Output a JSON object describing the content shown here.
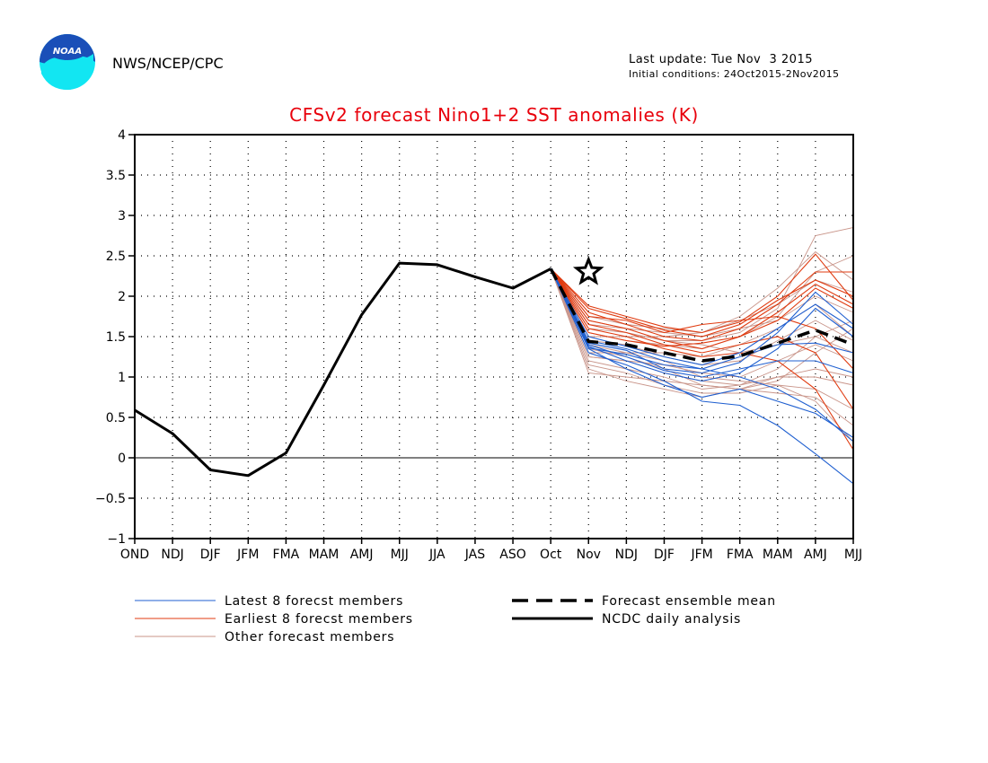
{
  "header": {
    "org": "NWS/NCEP/CPC",
    "logo_text": "NOAA",
    "last_update": "Last update: Tue Nov  3 2015",
    "initial_conditions": "Initial conditions: 24Oct2015-2Nov2015"
  },
  "colors": {
    "title": "#e8000b",
    "latest": "#1f5fd0",
    "earliest": "#e03b10",
    "other": "#c9958a",
    "analysis": "#000000",
    "logo_blue": "#1a4fb8",
    "logo_cyan": "#12e6f2"
  },
  "chart_data": {
    "type": "line",
    "title": "CFSv2 forecast Nino1+2 SST anomalies (K)",
    "xlabel": "",
    "ylabel": "",
    "categories": [
      "OND",
      "NDJ",
      "DJF",
      "JFM",
      "FMA",
      "MAM",
      "AMJ",
      "MJJ",
      "JJA",
      "JAS",
      "ASO",
      "Oct",
      "Nov",
      "NDJ",
      "DJF",
      "JFM",
      "FMA",
      "MAM",
      "AMJ",
      "MJJ"
    ],
    "ylim": [
      -1,
      4
    ],
    "yticks": [
      "4",
      "3.5",
      "3",
      "2.5",
      "2",
      "1.5",
      "1",
      "0.5",
      "0",
      "−0.5",
      "−1"
    ],
    "grid": true,
    "zero_line": true,
    "legend_position": "bottom",
    "legend": {
      "latest": "Latest 8 forecst members",
      "earliest": "Earliest 8 forecst members",
      "other": "Other forecast members",
      "mean": "Forecast ensemble mean",
      "analysis": "NCDC daily analysis"
    },
    "analysis": {
      "name": "NCDC daily analysis",
      "x": [
        0,
        1,
        2,
        3,
        4,
        5,
        6,
        7,
        8,
        9,
        10,
        11
      ],
      "values": [
        0.59,
        0.3,
        -0.15,
        -0.22,
        0.06,
        0.9,
        1.77,
        2.41,
        2.39,
        2.24,
        2.1,
        2.34
      ]
    },
    "star": {
      "x": 12,
      "value": 2.3
    },
    "forecast_ensemble_mean": {
      "name": "Forecast ensemble mean",
      "x": [
        11,
        12,
        13,
        14,
        15,
        16,
        17,
        18,
        19
      ],
      "values": [
        2.34,
        1.44,
        1.4,
        1.3,
        1.2,
        1.26,
        1.42,
        1.58,
        1.4
      ]
    },
    "forecast_x": [
      11,
      12,
      13,
      14,
      15,
      16,
      17,
      18,
      19
    ],
    "latest_members": [
      [
        2.34,
        1.42,
        1.33,
        1.1,
        1.05,
        1.18,
        1.55,
        2.05,
        1.65
      ],
      [
        2.34,
        1.38,
        1.2,
        1.05,
        0.95,
        1.05,
        1.35,
        1.85,
        1.5
      ],
      [
        2.34,
        1.3,
        1.15,
        0.95,
        0.7,
        0.65,
        0.4,
        0.05,
        -0.32
      ],
      [
        2.34,
        1.35,
        1.1,
        0.9,
        0.75,
        0.85,
        0.7,
        0.55,
        0.25
      ],
      [
        2.34,
        1.45,
        1.35,
        1.2,
        1.1,
        1.25,
        1.4,
        1.42,
        1.3
      ],
      [
        2.34,
        1.5,
        1.38,
        1.25,
        1.15,
        1.3,
        1.6,
        1.9,
        1.6
      ],
      [
        2.34,
        1.4,
        1.25,
        1.08,
        1.0,
        1.1,
        1.2,
        1.2,
        1.05
      ],
      [
        2.34,
        1.36,
        1.28,
        1.15,
        1.1,
        1.0,
        0.85,
        0.6,
        0.2
      ]
    ],
    "earliest_members": [
      [
        2.34,
        1.88,
        1.75,
        1.62,
        1.55,
        1.68,
        2.0,
        2.52,
        1.95
      ],
      [
        2.34,
        1.8,
        1.65,
        1.5,
        1.45,
        1.6,
        1.9,
        2.3,
        2.3
      ],
      [
        2.34,
        1.7,
        1.6,
        1.45,
        1.35,
        1.5,
        1.8,
        2.15,
        1.9
      ],
      [
        2.34,
        1.75,
        1.7,
        1.55,
        1.65,
        1.7,
        1.75,
        1.6,
        1.1
      ],
      [
        2.34,
        1.65,
        1.55,
        1.4,
        1.3,
        1.4,
        1.5,
        1.3,
        0.6
      ],
      [
        2.34,
        1.6,
        1.5,
        1.35,
        1.25,
        1.3,
        1.2,
        0.85,
        0.1
      ],
      [
        2.34,
        1.85,
        1.72,
        1.58,
        1.5,
        1.65,
        1.95,
        2.2,
        2.0
      ],
      [
        2.34,
        1.55,
        1.45,
        1.38,
        1.42,
        1.5,
        1.7,
        2.1,
        1.85
      ]
    ],
    "other_members": [
      [
        2.34,
        1.6,
        1.55,
        1.45,
        1.45,
        1.55,
        1.85,
        2.75,
        2.85
      ],
      [
        2.34,
        1.5,
        1.5,
        1.5,
        1.55,
        1.75,
        2.1,
        2.55,
        2.2
      ],
      [
        2.34,
        1.3,
        1.3,
        1.3,
        1.25,
        1.4,
        1.6,
        1.9,
        1.5
      ],
      [
        2.34,
        1.2,
        1.1,
        1.0,
        0.85,
        0.9,
        1.0,
        1.0,
        0.9
      ],
      [
        2.34,
        1.05,
        1.0,
        0.95,
        0.9,
        0.85,
        0.8,
        0.75,
        0.4
      ],
      [
        2.34,
        1.25,
        1.2,
        1.15,
        1.05,
        1.0,
        1.2,
        1.4,
        1.2
      ],
      [
        2.34,
        1.7,
        1.6,
        1.45,
        1.4,
        1.3,
        1.4,
        1.5,
        1.3
      ],
      [
        2.34,
        1.4,
        1.3,
        1.2,
        1.0,
        0.95,
        0.9,
        0.7,
        0.2
      ],
      [
        2.34,
        1.65,
        1.6,
        1.55,
        1.5,
        1.6,
        1.7,
        2.0,
        1.8
      ],
      [
        2.34,
        1.1,
        0.95,
        0.85,
        0.75,
        0.85,
        1.0,
        1.1,
        1.0
      ],
      [
        2.34,
        1.35,
        1.25,
        1.1,
        0.9,
        0.85,
        0.95,
        1.3,
        1.6
      ],
      [
        2.34,
        1.75,
        1.65,
        1.6,
        1.55,
        1.7,
        1.9,
        2.2,
        2.05
      ],
      [
        2.34,
        1.45,
        1.4,
        1.25,
        1.15,
        1.2,
        1.45,
        1.7,
        1.45
      ],
      [
        2.34,
        1.15,
        1.05,
        0.9,
        0.8,
        0.8,
        0.9,
        0.85,
        0.6
      ],
      [
        2.34,
        1.55,
        1.45,
        1.4,
        1.35,
        1.5,
        1.75,
        2.3,
        2.5
      ],
      [
        2.34,
        1.25,
        1.2,
        1.05,
        0.95,
        0.9,
        1.1,
        1.5,
        1.7
      ]
    ]
  }
}
